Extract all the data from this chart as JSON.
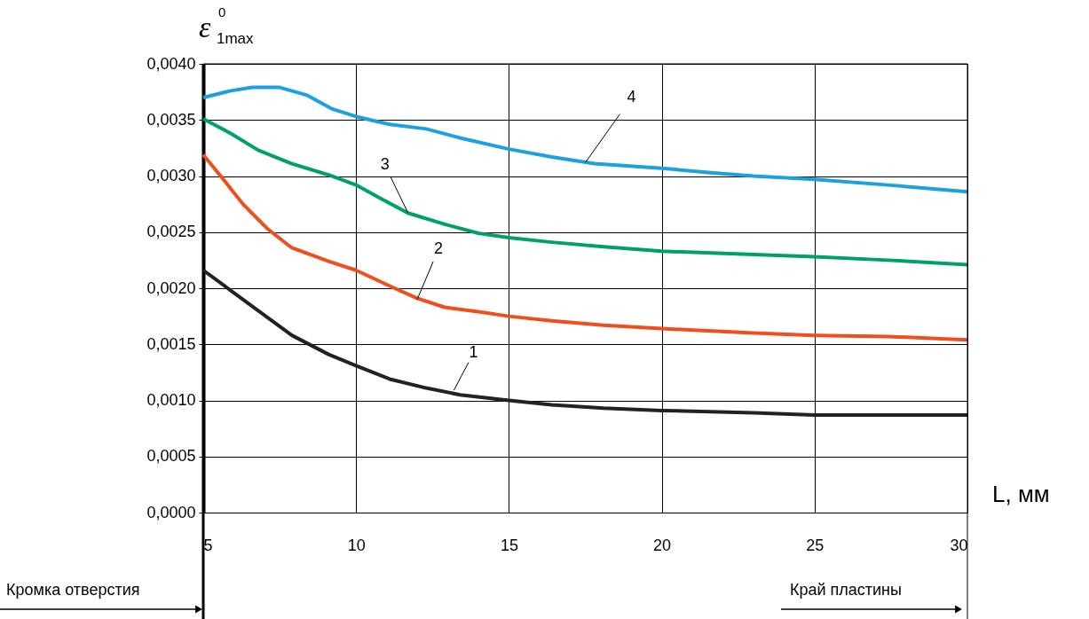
{
  "chart_data": {
    "type": "line",
    "xlabel": "L, мм",
    "ylabel": "ε$^{0}$$_{1max}$",
    "xlim": [
      5,
      30
    ],
    "xticks": [
      5,
      10,
      15,
      20,
      25,
      30
    ],
    "ylim": [
      0,
      0.004
    ],
    "yticks": [
      {
        "value": 0,
        "label": "0,0000"
      },
      {
        "value": 0.0005,
        "label": "0,0005"
      },
      {
        "value": 0.001,
        "label": "0,0010"
      },
      {
        "value": 0.0015,
        "label": "0,0015"
      },
      {
        "value": 0.002,
        "label": "0,0020"
      },
      {
        "value": 0.0025,
        "label": "0,0025"
      },
      {
        "value": 0.003,
        "label": "0,0030"
      },
      {
        "value": 0.0035,
        "label": "0,0035"
      },
      {
        "value": 0.004,
        "label": "0,0040"
      }
    ],
    "grid": true,
    "line_style": "solid",
    "marker": "none",
    "series": [
      {
        "color": "#222222",
        "x": [
          5,
          5.9,
          6.8,
          7.9,
          9.1,
          10,
          11.1,
          12.3,
          13.4,
          15,
          16.4,
          18.1,
          20,
          23,
          25,
          27.4,
          30
        ],
        "values": [
          0.00216,
          0.00198,
          0.0018,
          0.00158,
          0.00141,
          0.00131,
          0.00119,
          0.00111,
          0.00105,
          0.001,
          0.00096,
          0.00093,
          0.00091,
          0.00089,
          0.00087,
          0.00087,
          0.00087
        ]
      },
      {
        "color": "#f04e1e",
        "x": [
          5,
          5.6,
          6.3,
          7.1,
          7.9,
          9.1,
          10,
          11.1,
          12,
          12.9,
          14,
          15,
          16.4,
          18.1,
          20,
          23,
          25,
          27.4,
          30
        ],
        "values": [
          0.00319,
          0.00299,
          0.00275,
          0.00253,
          0.00236,
          0.00224,
          0.00216,
          0.00202,
          0.00191,
          0.00183,
          0.00179,
          0.00175,
          0.00171,
          0.00167,
          0.00164,
          0.0016,
          0.00158,
          0.00157,
          0.00154
        ]
      },
      {
        "color": "#00a06a",
        "x": [
          5,
          5.9,
          6.8,
          7.9,
          9.1,
          10,
          10.8,
          11.7,
          12.9,
          14,
          15,
          16.4,
          18.1,
          20,
          23,
          25,
          27.4,
          30
        ],
        "values": [
          0.00351,
          0.00338,
          0.00323,
          0.00311,
          0.00301,
          0.00292,
          0.0028,
          0.00267,
          0.00257,
          0.00249,
          0.00245,
          0.00241,
          0.00237,
          0.00233,
          0.0023,
          0.00228,
          0.00225,
          0.00221
        ]
      },
      {
        "color": "#1ba1dd",
        "x": [
          5,
          5.9,
          6.6,
          7.5,
          8.4,
          9.2,
          10,
          11.1,
          12.3,
          13.4,
          15,
          16.4,
          17.8,
          20,
          21.6,
          23,
          25,
          27.4,
          30
        ],
        "values": [
          0.0037,
          0.00376,
          0.00379,
          0.00379,
          0.00372,
          0.0036,
          0.00353,
          0.00346,
          0.00342,
          0.00334,
          0.00324,
          0.00317,
          0.00311,
          0.00307,
          0.00303,
          0.003,
          0.00297,
          0.00292,
          0.00286
        ]
      }
    ],
    "annotations": [
      {
        "text": "1",
        "x": 13.2,
        "y": 0.00109
      },
      {
        "text": "2",
        "x": 12,
        "y": 0.0019
      },
      {
        "text": "3",
        "x": 11.7,
        "y": 0.00267
      },
      {
        "text": "4",
        "x": 17.5,
        "y": 0.00312
      },
      "Кромка отверстия",
      "Край пластины"
    ]
  }
}
